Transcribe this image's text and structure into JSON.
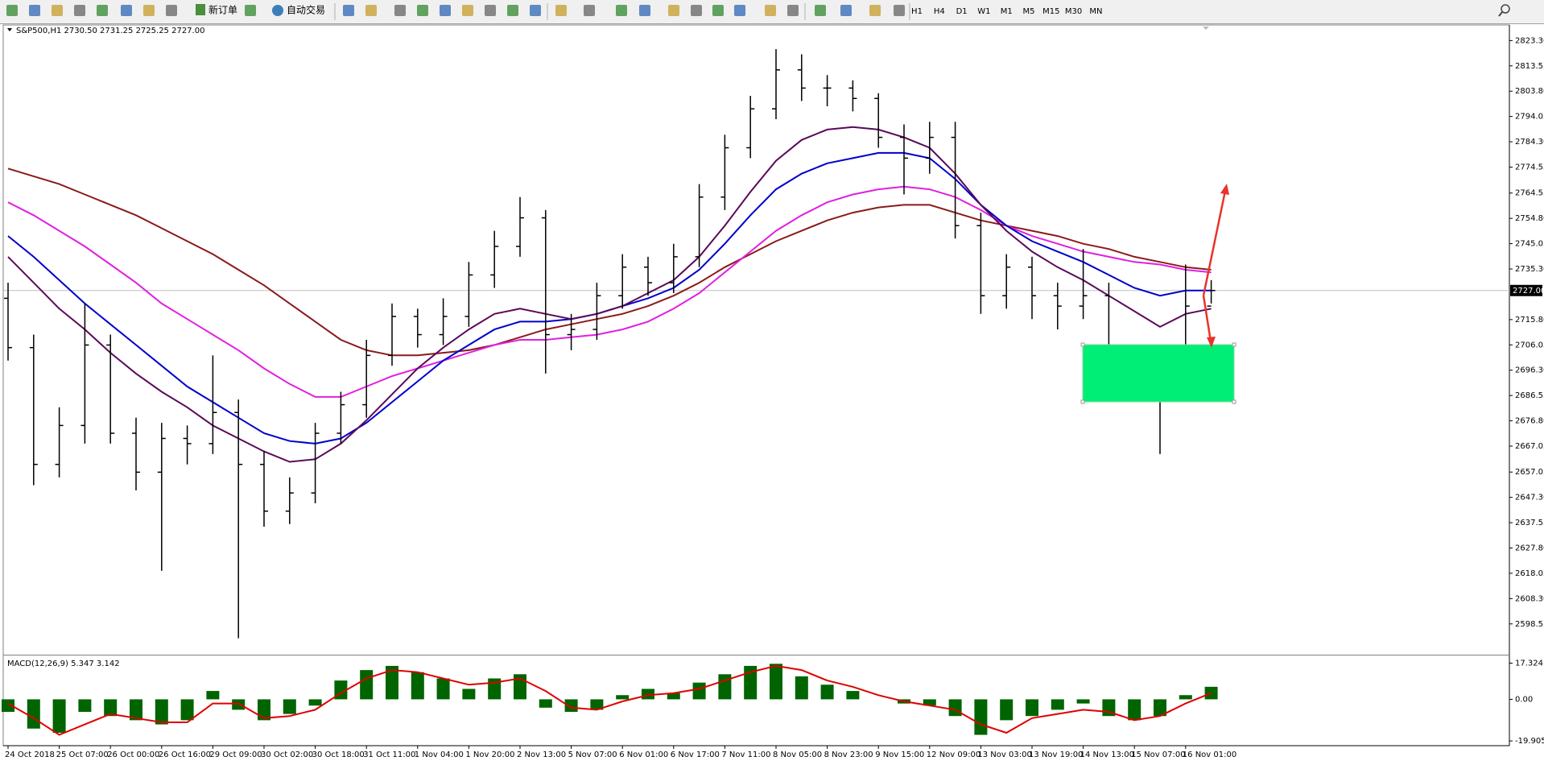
{
  "toolbar": {
    "buttons": [
      "新订单",
      "自动交易"
    ],
    "timeframes": [
      "H1",
      "H4",
      "D1",
      "W1",
      "M1",
      "M5",
      "M15",
      "M30",
      "MN"
    ]
  },
  "chart_data": [
    {
      "type": "ohlc",
      "title": "S&P500,H1  2730.50 2731.25 2725.25 2727.00",
      "color": "#000000",
      "categories": [
        "24 Oct 2018",
        null,
        "25 Oct 07:00",
        null,
        "26 Oct 00:00",
        null,
        "26 Oct 16:00",
        null,
        "29 Oct 09:00",
        null,
        "30 Oct 02:00",
        null,
        "30 Oct 18:00",
        null,
        "31 Oct 11:00",
        null,
        "1 Nov 04:00",
        null,
        "1 Nov 20:00",
        null,
        "2 Nov 13:00",
        null,
        "5 Nov 07:00",
        null,
        "6 Nov 01:00",
        null,
        "6 Nov 17:00",
        null,
        "7 Nov 11:00",
        null,
        "8 Nov 05:00",
        null,
        "8 Nov 23:00",
        null,
        "9 Nov 15:00",
        null,
        "12 Nov 09:00",
        null,
        "13 Nov 03:00",
        null,
        "13 Nov 19:00",
        null,
        "14 Nov 13:00",
        null,
        "15 Nov 07:00",
        null,
        "16 Nov 01:00",
        null
      ],
      "open": [
        2724,
        2705,
        2660,
        2675,
        2706,
        2672,
        2657,
        2670,
        2668,
        2680,
        2660,
        2642,
        2649,
        2672,
        2683,
        2702,
        2717,
        2710,
        2717,
        2733,
        2744,
        2755,
        2710,
        2712,
        2725,
        2736,
        2730,
        2740,
        2763,
        2782,
        2797,
        2812,
        2805,
        2805,
        2801,
        2786,
        2778,
        2786,
        2752,
        2725,
        2736,
        2725,
        2721,
        2725,
        2695,
        2691,
        2695,
        2721
      ],
      "high": [
        2730,
        2710,
        2682,
        2722,
        2710,
        2678,
        2676,
        2675,
        2702,
        2685,
        2665,
        2655,
        2676,
        2688,
        2708,
        2722,
        2720,
        2724,
        2738,
        2750,
        2763,
        2758,
        2718,
        2730,
        2741,
        2740,
        2745,
        2768,
        2787,
        2802,
        2820,
        2818,
        2810,
        2808,
        2803,
        2791,
        2792,
        2792,
        2757,
        2741,
        2740,
        2730,
        2743,
        2730,
        2700,
        2706,
        2737,
        2731
      ],
      "low": [
        2700,
        2652,
        2655,
        2668,
        2668,
        2650,
        2619,
        2660,
        2664,
        2593,
        2636,
        2637,
        2645,
        2668,
        2678,
        2698,
        2705,
        2706,
        2713,
        2728,
        2740,
        2695,
        2704,
        2708,
        2720,
        2725,
        2726,
        2736,
        2758,
        2778,
        2793,
        2800,
        2798,
        2796,
        2782,
        2764,
        2772,
        2747,
        2718,
        2720,
        2716,
        2712,
        2716,
        2686,
        2685,
        2664,
        2690,
        2722
      ],
      "close": [
        2705,
        2660,
        2675,
        2706,
        2672,
        2657,
        2670,
        2668,
        2680,
        2660,
        2642,
        2649,
        2672,
        2683,
        2702,
        2717,
        2710,
        2717,
        2733,
        2744,
        2755,
        2710,
        2712,
        2725,
        2736,
        2730,
        2740,
        2763,
        2782,
        2797,
        2812,
        2805,
        2805,
        2801,
        2786,
        2778,
        2786,
        2752,
        2725,
        2736,
        2725,
        2721,
        2725,
        2695,
        2691,
        2695,
        2721,
        2727
      ],
      "lines": [
        {
          "color": "#8b1a1a",
          "values": [
            2774,
            2771,
            2768,
            2764,
            2760,
            2756,
            2751,
            2746,
            2741,
            2735,
            2729,
            2722,
            2715,
            2708,
            2704,
            2702,
            2702,
            2703,
            2704,
            2706,
            2709,
            2712,
            2714,
            2716,
            2718,
            2721,
            2725,
            2730,
            2736,
            2741,
            2746,
            2750,
            2754,
            2757,
            2759,
            2760,
            2760,
            2757,
            2754,
            2752,
            2750,
            2748,
            2745,
            2743,
            2740,
            2738,
            2736,
            2735
          ]
        },
        {
          "color": "#e020e0",
          "values": [
            2761,
            2756,
            2750,
            2744,
            2737,
            2730,
            2722,
            2716,
            2710,
            2704,
            2697,
            2691,
            2686,
            2686,
            2690,
            2694,
            2697,
            2700,
            2703,
            2706,
            2708,
            2708,
            2709,
            2710,
            2712,
            2715,
            2720,
            2726,
            2734,
            2742,
            2750,
            2756,
            2761,
            2764,
            2766,
            2767,
            2766,
            2763,
            2758,
            2752,
            2748,
            2745,
            2742,
            2740,
            2738,
            2737,
            2735,
            2734
          ]
        },
        {
          "color": "#0000cc",
          "values": [
            2748,
            2740,
            2731,
            2722,
            2714,
            2706,
            2698,
            2690,
            2684,
            2678,
            2672,
            2669,
            2668,
            2670,
            2676,
            2684,
            2692,
            2700,
            2706,
            2712,
            2715,
            2715,
            2716,
            2718,
            2721,
            2724,
            2728,
            2735,
            2745,
            2756,
            2766,
            2772,
            2776,
            2778,
            2780,
            2780,
            2778,
            2770,
            2760,
            2752,
            2746,
            2742,
            2738,
            2733,
            2728,
            2725,
            2727,
            2727
          ]
        },
        {
          "color": "#5a0a5a",
          "values": [
            2740,
            2730,
            2720,
            2712,
            2703,
            2695,
            2688,
            2682,
            2675,
            2670,
            2665,
            2661,
            2662,
            2668,
            2677,
            2687,
            2697,
            2705,
            2712,
            2718,
            2720,
            2718,
            2716,
            2718,
            2721,
            2726,
            2731,
            2740,
            2752,
            2765,
            2777,
            2785,
            2789,
            2790,
            2789,
            2786,
            2782,
            2772,
            2760,
            2750,
            2742,
            2736,
            2731,
            2725,
            2719,
            2713,
            2718,
            2720
          ]
        }
      ],
      "current_price": {
        "value": 2727,
        "label": "2727.00"
      },
      "ylim": [
        2587,
        2829
      ],
      "yticks": [
        {
          "value": 2823.3,
          "label": "2823.30"
        },
        2813.55,
        {
          "value": 2803.8,
          "label": "2803.80"
        },
        2794.05,
        {
          "value": 2784.3,
          "label": "2784.30"
        },
        2774.55,
        2764.55,
        {
          "value": 2754.8,
          "label": "2754.80"
        },
        2745.05,
        {
          "value": 2735.3,
          "label": "2735.30"
        },
        {
          "value": 2715.8,
          "label": "2715.80"
        },
        2706.05,
        {
          "value": 2696.3,
          "label": "2696.30"
        },
        2686.55,
        {
          "value": 2676.8,
          "label": "2676.80"
        },
        2667.05,
        2657.05,
        {
          "value": 2647.3,
          "label": "2647.30"
        },
        2637.55,
        {
          "value": 2627.8,
          "label": "2627.80"
        },
        2618.05,
        {
          "value": 2608.3,
          "label": "2608.30"
        },
        2598.55
      ],
      "grid": false
    },
    {
      "type": "macd",
      "title": "MACD(12,26,9) 5.347 3.142",
      "color": "#006400",
      "values": [
        -6,
        -14,
        -16,
        -6,
        -8,
        -10,
        -12,
        -10,
        4,
        -5,
        -10,
        -7,
        -3,
        9,
        14,
        16,
        13,
        10,
        5,
        10,
        12,
        -4,
        -6,
        -5,
        2,
        5,
        3,
        8,
        12,
        16,
        17,
        11,
        7,
        4,
        0,
        -2,
        -3,
        -8,
        -17,
        -10,
        -8,
        -5,
        -2,
        -8,
        -10,
        -8,
        2,
        6
      ],
      "signal": {
        "color": "#e00000",
        "values": [
          -2,
          -9,
          -17,
          -12,
          -7,
          -9,
          -11,
          -11,
          -2,
          -2,
          -9,
          -8,
          -5,
          3,
          10,
          14,
          13,
          10,
          7,
          8,
          10,
          4,
          -4,
          -5,
          -1,
          2,
          3,
          5,
          9,
          13,
          16,
          14,
          9,
          6,
          2,
          -1,
          -3,
          -5,
          -12,
          -16,
          -9,
          -7,
          -5,
          -6,
          -10,
          -8,
          -2,
          3
        ]
      },
      "ylim": [
        -21.8,
        20.6
      ],
      "yticks": [
        17.324,
        {
          "value": 0,
          "label": "0.00"
        },
        -19.905
      ],
      "grid": false
    }
  ]
}
